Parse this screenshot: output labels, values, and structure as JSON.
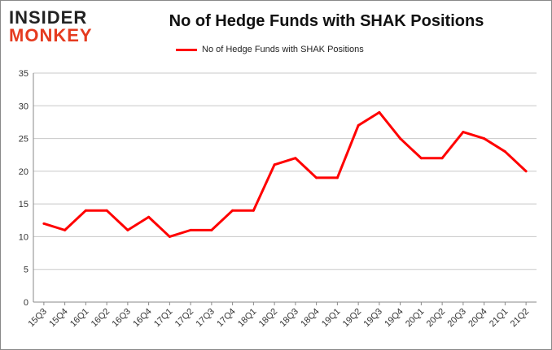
{
  "logo": {
    "line1": "INSIDER",
    "line2": "MONKEY"
  },
  "chart_data": {
    "type": "line",
    "title": "No of Hedge Funds with SHAK Positions",
    "xlabel": "",
    "ylabel": "",
    "legend_position": "top",
    "grid": true,
    "color": "#ff0000",
    "categories": [
      "15Q3",
      "15Q4",
      "16Q1",
      "16Q2",
      "16Q3",
      "16Q4",
      "17Q1",
      "17Q2",
      "17Q3",
      "17Q4",
      "18Q1",
      "18Q2",
      "18Q3",
      "18Q4",
      "19Q1",
      "19Q2",
      "19Q3",
      "19Q4",
      "20Q1",
      "20Q2",
      "20Q3",
      "20Q4",
      "21Q1",
      "21Q2"
    ],
    "series": [
      {
        "name": "No of Hedge Funds with SHAK Positions",
        "values": [
          12,
          11,
          14,
          14,
          11,
          13,
          10,
          11,
          11,
          14,
          14,
          21,
          22,
          19,
          19,
          27,
          29,
          25,
          22,
          22,
          26,
          25,
          23,
          20
        ]
      }
    ],
    "ylim": [
      0,
      35
    ],
    "yticks": [
      0,
      5,
      10,
      15,
      20,
      25,
      30,
      35
    ]
  }
}
